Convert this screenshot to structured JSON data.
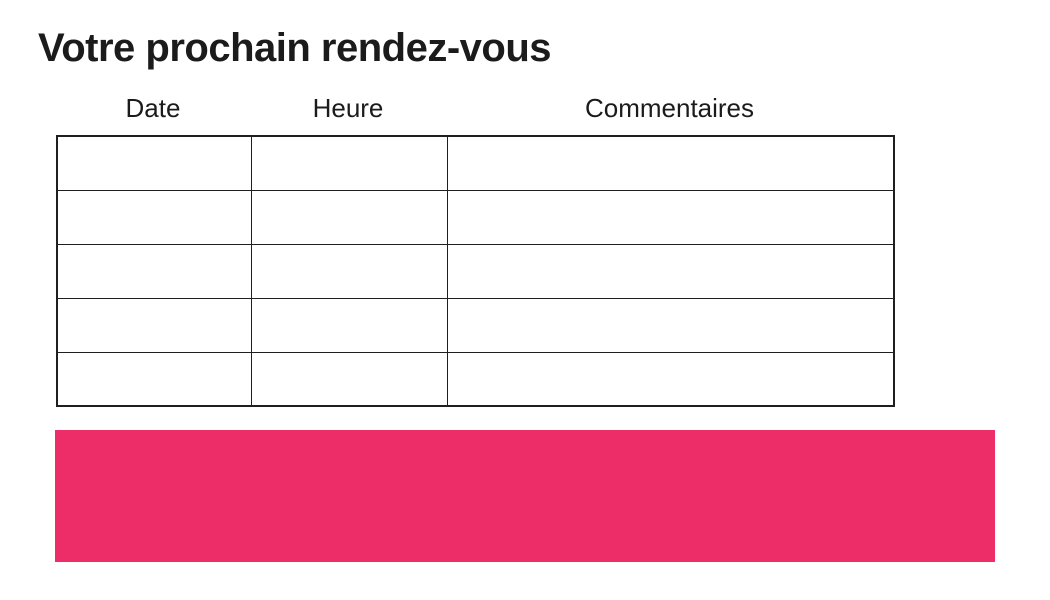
{
  "title": "Votre prochain rendez-vous",
  "table": {
    "columns": [
      {
        "label": "Date"
      },
      {
        "label": "Heure"
      },
      {
        "label": "Commentaires"
      }
    ],
    "rows": [
      [
        "",
        "",
        ""
      ],
      [
        "",
        "",
        ""
      ],
      [
        "",
        "",
        ""
      ],
      [
        "",
        "",
        ""
      ],
      [
        "",
        "",
        ""
      ]
    ]
  },
  "colors": {
    "banner_pink": "#ED2D68",
    "table_border": "#1f1f1f",
    "text": "#1b1b1b"
  }
}
